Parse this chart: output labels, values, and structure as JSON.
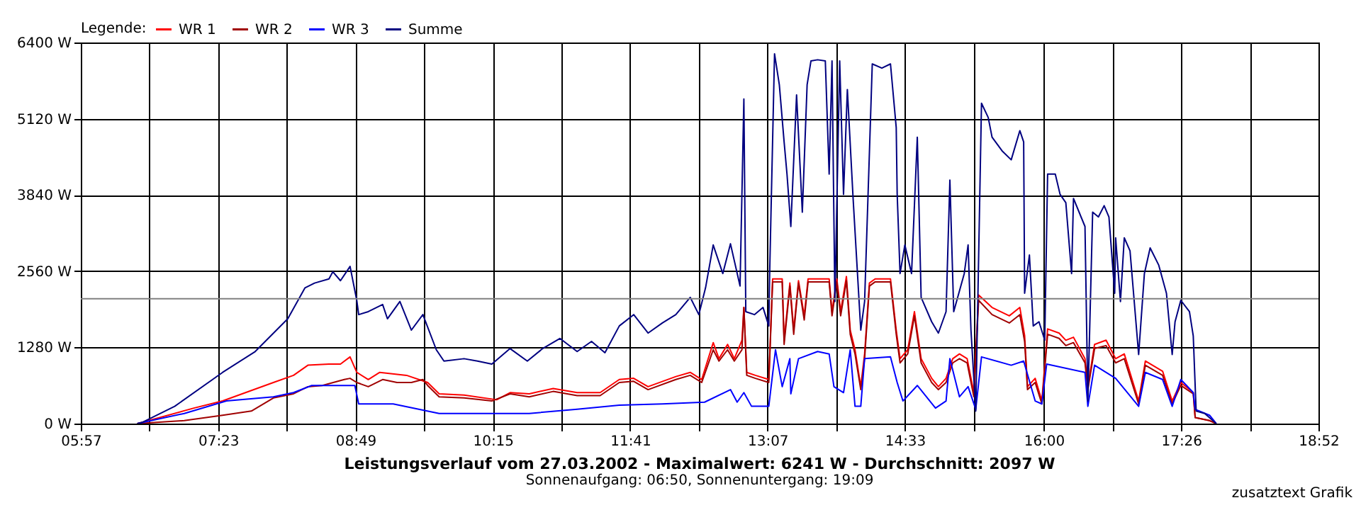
{
  "chart_data": {
    "type": "line",
    "title": "Leistungsverlauf vom 27.03.2002 - Maximalwert: 6241 W - Durchschnitt: 2097 W",
    "subtitle": "Sonnenaufgang: 06:50, Sonnenuntergang: 19:09",
    "annotations": [
      "zusatztext Grafik"
    ],
    "legend_title": "Legende:",
    "legend": "top left",
    "grid": true,
    "xlim": [
      5.95,
      18.8667
    ],
    "xticks": [
      {
        "value": 5.95,
        "label": "05:57"
      },
      {
        "value": 6.6667,
        "label": null
      },
      {
        "value": 7.3833,
        "label": "07:23"
      },
      {
        "value": 8.1,
        "label": null
      },
      {
        "value": 8.8167,
        "label": "08:49"
      },
      {
        "value": 9.5333,
        "label": null
      },
      {
        "value": 10.25,
        "label": "10:15"
      },
      {
        "value": 10.9667,
        "label": null
      },
      {
        "value": 11.6833,
        "label": "11:41"
      },
      {
        "value": 12.4,
        "label": null
      },
      {
        "value": 13.1167,
        "label": "13:07"
      },
      {
        "value": 13.8333,
        "label": null
      },
      {
        "value": 14.55,
        "label": "14:33"
      },
      {
        "value": 15.275,
        "label": null
      },
      {
        "value": 16.0,
        "label": "16:00"
      },
      {
        "value": 16.7167,
        "label": null
      },
      {
        "value": 17.4333,
        "label": "17:26"
      },
      {
        "value": 18.15,
        "label": null
      },
      {
        "value": 18.8667,
        "label": "18:52"
      }
    ],
    "ylim": [
      0,
      6400
    ],
    "yticks": [
      {
        "value": 0,
        "label": "0 W"
      },
      {
        "value": 1280,
        "label": "1280 W"
      },
      {
        "value": 2560,
        "label": "2560 W"
      },
      {
        "value": 3840,
        "label": "3840 W"
      },
      {
        "value": 5120,
        "label": "5120 W"
      },
      {
        "value": 6400,
        "label": "6400 W"
      }
    ],
    "ref_lines": [
      {
        "axis": "y",
        "value": 2097,
        "color": "#808080"
      }
    ],
    "series": [
      {
        "name": "WR 1",
        "color": "#ff0000",
        "x": [
          6.54,
          6.59,
          7.13,
          7.43,
          7.96,
          8.17,
          8.32,
          8.54,
          8.66,
          8.76,
          8.83,
          8.95,
          9.07,
          9.35,
          9.57,
          9.69,
          9.95,
          10.29,
          10.43,
          10.63,
          10.88,
          11.13,
          11.37,
          11.57,
          11.72,
          11.87,
          12.16,
          12.31,
          12.43,
          12.55,
          12.61,
          12.7,
          12.77,
          12.85,
          12.87,
          12.9,
          12.99,
          13.13,
          13.17,
          13.27,
          13.29,
          13.35,
          13.39,
          13.44,
          13.5,
          13.54,
          13.76,
          13.79,
          13.84,
          13.88,
          13.94,
          13.98,
          14.03,
          14.09,
          14.13,
          14.18,
          14.24,
          14.4,
          14.46,
          14.5,
          14.58,
          14.65,
          14.72,
          14.83,
          14.9,
          14.98,
          15.05,
          15.12,
          15.2,
          15.27,
          15.32,
          15.46,
          15.64,
          15.75,
          15.8,
          15.83,
          15.91,
          15.98,
          16.04,
          16.16,
          16.23,
          16.31,
          16.43,
          16.46,
          16.53,
          16.65,
          16.75,
          16.84,
          16.99,
          17.06,
          17.24,
          17.34,
          17.43,
          17.56,
          17.58,
          17.73,
          17.8
        ],
        "values": [
          0,
          20,
          260,
          380,
          690,
          810,
          980,
          1000,
          1000,
          1120,
          860,
          740,
          860,
          810,
          690,
          500,
          480,
          400,
          520,
          500,
          590,
          520,
          520,
          740,
          760,
          620,
          790,
          860,
          740,
          1360,
          1090,
          1330,
          1090,
          1400,
          1950,
          860,
          810,
          740,
          2430,
          2430,
          1400,
          2360,
          1570,
          2400,
          1810,
          2430,
          2430,
          1880,
          2430,
          1880,
          2470,
          1570,
          1240,
          620,
          1170,
          2360,
          2430,
          2430,
          1570,
          1090,
          1240,
          1880,
          1090,
          760,
          620,
          760,
          1090,
          1170,
          1090,
          520,
          2160,
          1950,
          1810,
          1950,
          1480,
          620,
          760,
          380,
          1590,
          1520,
          1400,
          1450,
          1090,
          620,
          1330,
          1400,
          1090,
          1170,
          380,
          1050,
          880,
          380,
          690,
          520,
          100,
          50,
          0
        ]
      },
      {
        "name": "WR 2",
        "color": "#a00000",
        "x": [
          6.54,
          7.03,
          7.43,
          7.73,
          7.96,
          8.17,
          8.32,
          8.47,
          8.7,
          8.76,
          8.83,
          8.95,
          9.1,
          9.25,
          9.4,
          9.52,
          9.57,
          9.69,
          9.95,
          10.24,
          10.43,
          10.63,
          10.88,
          11.13,
          11.37,
          11.57,
          11.72,
          11.87,
          12.16,
          12.31,
          12.43,
          12.55,
          12.61,
          12.7,
          12.77,
          12.85,
          12.87,
          12.9,
          12.99,
          13.13,
          13.17,
          13.27,
          13.29,
          13.35,
          13.39,
          13.44,
          13.5,
          13.54,
          13.76,
          13.79,
          13.84,
          13.88,
          13.94,
          13.98,
          14.03,
          14.09,
          14.13,
          14.18,
          14.24,
          14.4,
          14.46,
          14.5,
          14.58,
          14.65,
          14.72,
          14.83,
          14.9,
          14.98,
          15.05,
          15.12,
          15.2,
          15.27,
          15.32,
          15.46,
          15.64,
          15.75,
          15.8,
          15.83,
          15.91,
          15.98,
          16.04,
          16.16,
          16.23,
          16.31,
          16.43,
          16.46,
          16.53,
          16.65,
          16.75,
          16.84,
          16.99,
          17.06,
          17.24,
          17.34,
          17.43,
          17.56,
          17.58,
          17.73,
          17.8
        ],
        "values": [
          0,
          50,
          140,
          210,
          430,
          500,
          620,
          640,
          740,
          760,
          690,
          620,
          740,
          690,
          690,
          740,
          640,
          450,
          430,
          380,
          500,
          450,
          540,
          470,
          470,
          690,
          710,
          570,
          740,
          810,
          690,
          1240,
          1050,
          1240,
          1050,
          1240,
          1950,
          810,
          760,
          690,
          2380,
          2380,
          1330,
          2310,
          1500,
          2360,
          1740,
          2380,
          2380,
          1810,
          2380,
          1810,
          2400,
          1500,
          1170,
          570,
          1090,
          2310,
          2380,
          2380,
          1500,
          1020,
          1170,
          1810,
          1020,
          690,
          570,
          690,
          1020,
          1090,
          1020,
          450,
          2070,
          1830,
          1690,
          1830,
          1380,
          570,
          690,
          330,
          1500,
          1430,
          1310,
          1360,
          1020,
          570,
          1260,
          1310,
          1020,
          1090,
          330,
          980,
          810,
          330,
          640,
          500,
          100,
          50,
          0
        ]
      },
      {
        "name": "WR 3",
        "color": "#0000ff",
        "x": [
          6.54,
          7.03,
          7.47,
          7.96,
          8.17,
          8.36,
          8.69,
          8.81,
          8.85,
          9.21,
          9.69,
          10.29,
          10.63,
          11.13,
          11.57,
          12.02,
          12.46,
          12.73,
          12.8,
          12.87,
          12.95,
          13.13,
          13.2,
          13.27,
          13.35,
          13.36,
          13.44,
          13.64,
          13.76,
          13.81,
          13.91,
          13.98,
          14.03,
          14.09,
          14.13,
          14.4,
          14.47,
          14.53,
          14.68,
          14.87,
          14.98,
          15.02,
          15.12,
          15.21,
          15.29,
          15.35,
          15.66,
          15.79,
          15.91,
          15.98,
          16.03,
          16.43,
          16.46,
          16.53,
          16.75,
          16.99,
          17.06,
          17.24,
          17.34,
          17.43,
          17.56,
          17.58,
          17.73,
          17.8
        ],
        "values": [
          0,
          170,
          380,
          450,
          520,
          640,
          640,
          640,
          330,
          330,
          170,
          170,
          170,
          240,
          310,
          330,
          360,
          570,
          360,
          520,
          290,
          290,
          1240,
          620,
          1090,
          500,
          1090,
          1210,
          1170,
          620,
          520,
          1240,
          290,
          290,
          1090,
          1120,
          690,
          380,
          640,
          260,
          380,
          1090,
          450,
          620,
          240,
          1120,
          980,
          1050,
          380,
          330,
          1000,
          860,
          290,
          980,
          760,
          290,
          860,
          740,
          290,
          740,
          520,
          240,
          140,
          0
        ]
      },
      {
        "name": "Summe",
        "color": "#000080",
        "x": [
          6.54,
          6.59,
          6.93,
          7.43,
          7.77,
          8.11,
          8.29,
          8.39,
          8.54,
          8.58,
          8.66,
          8.76,
          8.83,
          8.85,
          8.95,
          9.1,
          9.15,
          9.28,
          9.4,
          9.52,
          9.66,
          9.74,
          9.95,
          10.09,
          10.24,
          10.43,
          10.61,
          10.77,
          10.95,
          11.13,
          11.28,
          11.42,
          11.57,
          11.72,
          11.87,
          12.02,
          12.16,
          12.31,
          12.4,
          12.47,
          12.55,
          12.65,
          12.73,
          12.83,
          12.87,
          12.89,
          12.98,
          13.07,
          13.13,
          13.14,
          13.19,
          13.24,
          13.29,
          13.32,
          13.36,
          13.42,
          13.48,
          13.53,
          13.57,
          13.64,
          13.72,
          13.76,
          13.79,
          13.82,
          13.87,
          13.91,
          13.95,
          14.01,
          14.09,
          14.13,
          14.21,
          14.31,
          14.4,
          14.46,
          14.47,
          14.5,
          14.55,
          14.62,
          14.68,
          14.72,
          14.83,
          14.9,
          14.98,
          15.02,
          15.06,
          15.17,
          15.21,
          15.24,
          15.29,
          15.35,
          15.42,
          15.46,
          15.57,
          15.66,
          15.75,
          15.79,
          15.8,
          15.85,
          15.89,
          15.95,
          16.01,
          16.04,
          16.12,
          16.17,
          16.23,
          16.29,
          16.31,
          16.43,
          16.46,
          16.51,
          16.57,
          16.63,
          16.68,
          16.74,
          16.75,
          16.8,
          16.84,
          16.9,
          16.99,
          17.05,
          17.11,
          17.2,
          17.28,
          17.34,
          17.37,
          17.43,
          17.52,
          17.56,
          17.59,
          17.68,
          17.8
        ],
        "values": [
          0,
          20,
          290,
          860,
          1210,
          1760,
          2280,
          2360,
          2430,
          2550,
          2400,
          2640,
          2070,
          1830,
          1880,
          2000,
          1760,
          2050,
          1570,
          1830,
          1240,
          1050,
          1090,
          1050,
          1000,
          1260,
          1050,
          1260,
          1430,
          1210,
          1380,
          1190,
          1640,
          1830,
          1520,
          1690,
          1830,
          2120,
          1830,
          2280,
          3000,
          2520,
          3020,
          2310,
          5450,
          1880,
          1830,
          1950,
          1640,
          2590,
          6210,
          5690,
          4730,
          4190,
          3310,
          5520,
          3550,
          5690,
          6090,
          6110,
          6090,
          4190,
          6090,
          2050,
          6090,
          3850,
          5610,
          3780,
          1570,
          2050,
          6040,
          5970,
          6040,
          4970,
          3850,
          2520,
          3000,
          2520,
          4810,
          2120,
          1710,
          1520,
          1880,
          4090,
          1880,
          2520,
          3000,
          1570,
          210,
          5380,
          5140,
          4810,
          4570,
          4430,
          4920,
          4730,
          2190,
          2830,
          1640,
          1710,
          1400,
          4190,
          4190,
          3850,
          3710,
          2520,
          3780,
          3310,
          380,
          3550,
          3470,
          3660,
          3470,
          2190,
          3120,
          2050,
          3120,
          2900,
          1160,
          2520,
          2950,
          2660,
          2190,
          1160,
          1710,
          2070,
          1880,
          1470,
          210,
          170,
          0
        ]
      }
    ]
  }
}
